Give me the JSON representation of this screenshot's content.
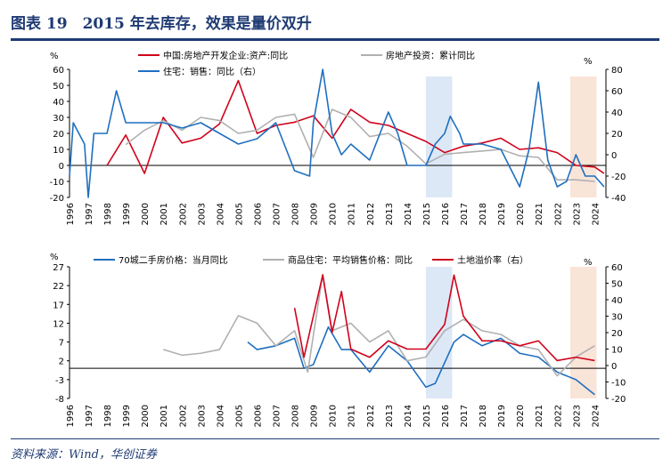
{
  "title": "图表 19　2015 年去库存，效果是量价双升",
  "source": "资料来源：Wind，华创证券",
  "colors": {
    "red": "#d0021b",
    "gray": "#b0b0b0",
    "blue": "#1f6fc0",
    "highlight_blue": "#dce8f6",
    "highlight_orange": "#f9e4d8"
  },
  "chart_data": [
    {
      "type": "line",
      "left_unit": "%",
      "right_unit": "%",
      "ylim": [
        -20,
        60
      ],
      "yticks": [
        -20,
        -10,
        0,
        10,
        20,
        30,
        40,
        50,
        60
      ],
      "y2lim": [
        -40,
        80
      ],
      "y2ticks": [
        -40,
        -20,
        0,
        20,
        40,
        60,
        80
      ],
      "xticks": [
        "1996",
        "1997",
        "1998",
        "1999",
        "2000",
        "2001",
        "2002",
        "2003",
        "2004",
        "2005",
        "2006",
        "2007",
        "2008",
        "2009",
        "2010",
        "2011",
        "2012",
        "2013",
        "2014",
        "2015",
        "2016",
        "2017",
        "2018",
        "2019",
        "2020",
        "2021",
        "2022",
        "2023",
        "2024"
      ],
      "highlights": [
        {
          "from": 2015,
          "to": 2016.4,
          "color": "blue"
        },
        {
          "from": 2022.7,
          "to": 2024.1,
          "color": "orange"
        }
      ],
      "series": [
        {
          "name": "中国:房地产开发企业:资产:同比",
          "color": "red",
          "axis": "left",
          "points": [
            [
              1998,
              0
            ],
            [
              1999,
              19
            ],
            [
              2000,
              -5
            ],
            [
              2001,
              30
            ],
            [
              2002,
              14
            ],
            [
              2003,
              17
            ],
            [
              2004,
              26
            ],
            [
              2005,
              53
            ],
            [
              2006,
              20
            ],
            [
              2007,
              25
            ],
            [
              2008,
              27
            ],
            [
              2009,
              31
            ],
            [
              2010,
              17
            ],
            [
              2011,
              35
            ],
            [
              2012,
              27
            ],
            [
              2013,
              25
            ],
            [
              2014,
              20
            ],
            [
              2015,
              15
            ],
            [
              2016,
              8
            ],
            [
              2017,
              12
            ],
            [
              2018,
              14
            ],
            [
              2019,
              17
            ],
            [
              2020,
              10
            ],
            [
              2021,
              11
            ],
            [
              2022,
              8
            ],
            [
              2023,
              0
            ],
            [
              2024,
              -1
            ],
            [
              2024.5,
              -5
            ]
          ]
        },
        {
          "name": "房地产投资：累计同比",
          "color": "gray",
          "axis": "left",
          "points": [
            [
              1999,
              13
            ],
            [
              2000,
              22
            ],
            [
              2001,
              28
            ],
            [
              2002,
              22
            ],
            [
              2003,
              30
            ],
            [
              2004,
              28
            ],
            [
              2005,
              20
            ],
            [
              2006,
              22
            ],
            [
              2007,
              30
            ],
            [
              2008,
              32
            ],
            [
              2009,
              5
            ],
            [
              2010,
              35
            ],
            [
              2011,
              30
            ],
            [
              2012,
              18
            ],
            [
              2013,
              20
            ],
            [
              2014,
              12
            ],
            [
              2015,
              1
            ],
            [
              2016,
              7
            ],
            [
              2017,
              8
            ],
            [
              2018,
              9
            ],
            [
              2019,
              10
            ],
            [
              2020,
              6
            ],
            [
              2021,
              5
            ],
            [
              2022,
              -9
            ],
            [
              2023,
              -9
            ],
            [
              2024,
              -10
            ]
          ]
        },
        {
          "name": "住宅：销售：同比（右）",
          "color": "blue",
          "axis": "right",
          "points": [
            [
              1996,
              -20
            ],
            [
              1996.2,
              30
            ],
            [
              1996.8,
              10
            ],
            [
              1997,
              -40
            ],
            [
              1997.3,
              20
            ],
            [
              1998,
              20
            ],
            [
              1998.5,
              60
            ],
            [
              1999,
              30
            ],
            [
              2000,
              30
            ],
            [
              2001,
              30
            ],
            [
              2002,
              25
            ],
            [
              2003,
              30
            ],
            [
              2004,
              20
            ],
            [
              2005,
              10
            ],
            [
              2006,
              15
            ],
            [
              2007,
              30
            ],
            [
              2008,
              -15
            ],
            [
              2008.8,
              -20
            ],
            [
              2009,
              30
            ],
            [
              2009.5,
              80
            ],
            [
              2010,
              20
            ],
            [
              2010.5,
              0
            ],
            [
              2011,
              10
            ],
            [
              2012,
              -5
            ],
            [
              2013,
              40
            ],
            [
              2013.5,
              20
            ],
            [
              2014,
              -10
            ],
            [
              2015,
              -10
            ],
            [
              2015.5,
              10
            ],
            [
              2016,
              20
            ],
            [
              2016.3,
              36
            ],
            [
              2016.8,
              20
            ],
            [
              2017,
              10
            ],
            [
              2018,
              10
            ],
            [
              2019,
              5
            ],
            [
              2020,
              -30
            ],
            [
              2020.5,
              5
            ],
            [
              2021,
              68
            ],
            [
              2021.5,
              -5
            ],
            [
              2022,
              -30
            ],
            [
              2022.5,
              -25
            ],
            [
              2023,
              0
            ],
            [
              2023.5,
              -20
            ],
            [
              2024,
              -20
            ],
            [
              2024.5,
              -30
            ]
          ]
        }
      ]
    },
    {
      "type": "line",
      "left_unit": "%",
      "right_unit": "%",
      "ylim": [
        -8,
        27
      ],
      "yticks": [
        -8,
        -3,
        2,
        7,
        12,
        17,
        22,
        27
      ],
      "y2lim": [
        -20,
        60
      ],
      "y2ticks": [
        -20,
        -10,
        0,
        10,
        20,
        30,
        40,
        50,
        60
      ],
      "xticks": [
        "1996",
        "1997",
        "1998",
        "1999",
        "2000",
        "2001",
        "2002",
        "2003",
        "2004",
        "2005",
        "2006",
        "2007",
        "2008",
        "2009",
        "2010",
        "2011",
        "2012",
        "2013",
        "2014",
        "2015",
        "2016",
        "2017",
        "2018",
        "2019",
        "2020",
        "2021",
        "2022",
        "2023",
        "2024"
      ],
      "highlights": [
        {
          "from": 2015,
          "to": 2016.4,
          "color": "blue"
        },
        {
          "from": 2022.7,
          "to": 2024.1,
          "color": "orange"
        }
      ],
      "series": [
        {
          "name": "70城二手房价格：当月同比",
          "color": "blue",
          "axis": "left",
          "points": [
            [
              2005.5,
              7
            ],
            [
              2006,
              5
            ],
            [
              2007,
              6
            ],
            [
              2008,
              8
            ],
            [
              2008.5,
              0
            ],
            [
              2009,
              1
            ],
            [
              2009.8,
              11
            ],
            [
              2010.5,
              5
            ],
            [
              2011,
              5
            ],
            [
              2012,
              -1
            ],
            [
              2013,
              6
            ],
            [
              2014,
              2
            ],
            [
              2015,
              -5
            ],
            [
              2015.5,
              -4
            ],
            [
              2016.5,
              7
            ],
            [
              2017,
              9
            ],
            [
              2018,
              6
            ],
            [
              2019,
              8
            ],
            [
              2020,
              4
            ],
            [
              2021,
              3
            ],
            [
              2022,
              -1
            ],
            [
              2023,
              -3
            ],
            [
              2024,
              -7
            ]
          ]
        },
        {
          "name": "商品住宅：平均销售价格：同比",
          "color": "gray",
          "axis": "left",
          "points": [
            [
              2001,
              5
            ],
            [
              2002,
              3.5
            ],
            [
              2003,
              4
            ],
            [
              2004,
              5
            ],
            [
              2005,
              14
            ],
            [
              2006,
              12
            ],
            [
              2007,
              6
            ],
            [
              2008,
              10
            ],
            [
              2008.7,
              -1
            ],
            [
              2009.5,
              25
            ],
            [
              2010,
              10
            ],
            [
              2011,
              12
            ],
            [
              2012,
              7
            ],
            [
              2013,
              10
            ],
            [
              2014,
              2
            ],
            [
              2015,
              3
            ],
            [
              2016,
              10
            ],
            [
              2017,
              13
            ],
            [
              2018,
              10
            ],
            [
              2019,
              9
            ],
            [
              2020,
              6
            ],
            [
              2021,
              5
            ],
            [
              2022,
              -2
            ],
            [
              2023,
              3
            ],
            [
              2024,
              6
            ]
          ]
        },
        {
          "name": "土地溢价率（右）",
          "color": "red",
          "axis": "right",
          "points": [
            [
              2008,
              35
            ],
            [
              2008.5,
              5
            ],
            [
              2009.5,
              55
            ],
            [
              2010,
              20
            ],
            [
              2010.5,
              45
            ],
            [
              2011,
              10
            ],
            [
              2012,
              5
            ],
            [
              2013,
              15
            ],
            [
              2014,
              10
            ],
            [
              2015,
              10
            ],
            [
              2016,
              25
            ],
            [
              2016.5,
              55
            ],
            [
              2017,
              30
            ],
            [
              2018,
              15
            ],
            [
              2019,
              15
            ],
            [
              2020,
              12
            ],
            [
              2021,
              15
            ],
            [
              2022,
              3
            ],
            [
              2023,
              5
            ],
            [
              2024,
              3
            ]
          ]
        }
      ]
    }
  ]
}
